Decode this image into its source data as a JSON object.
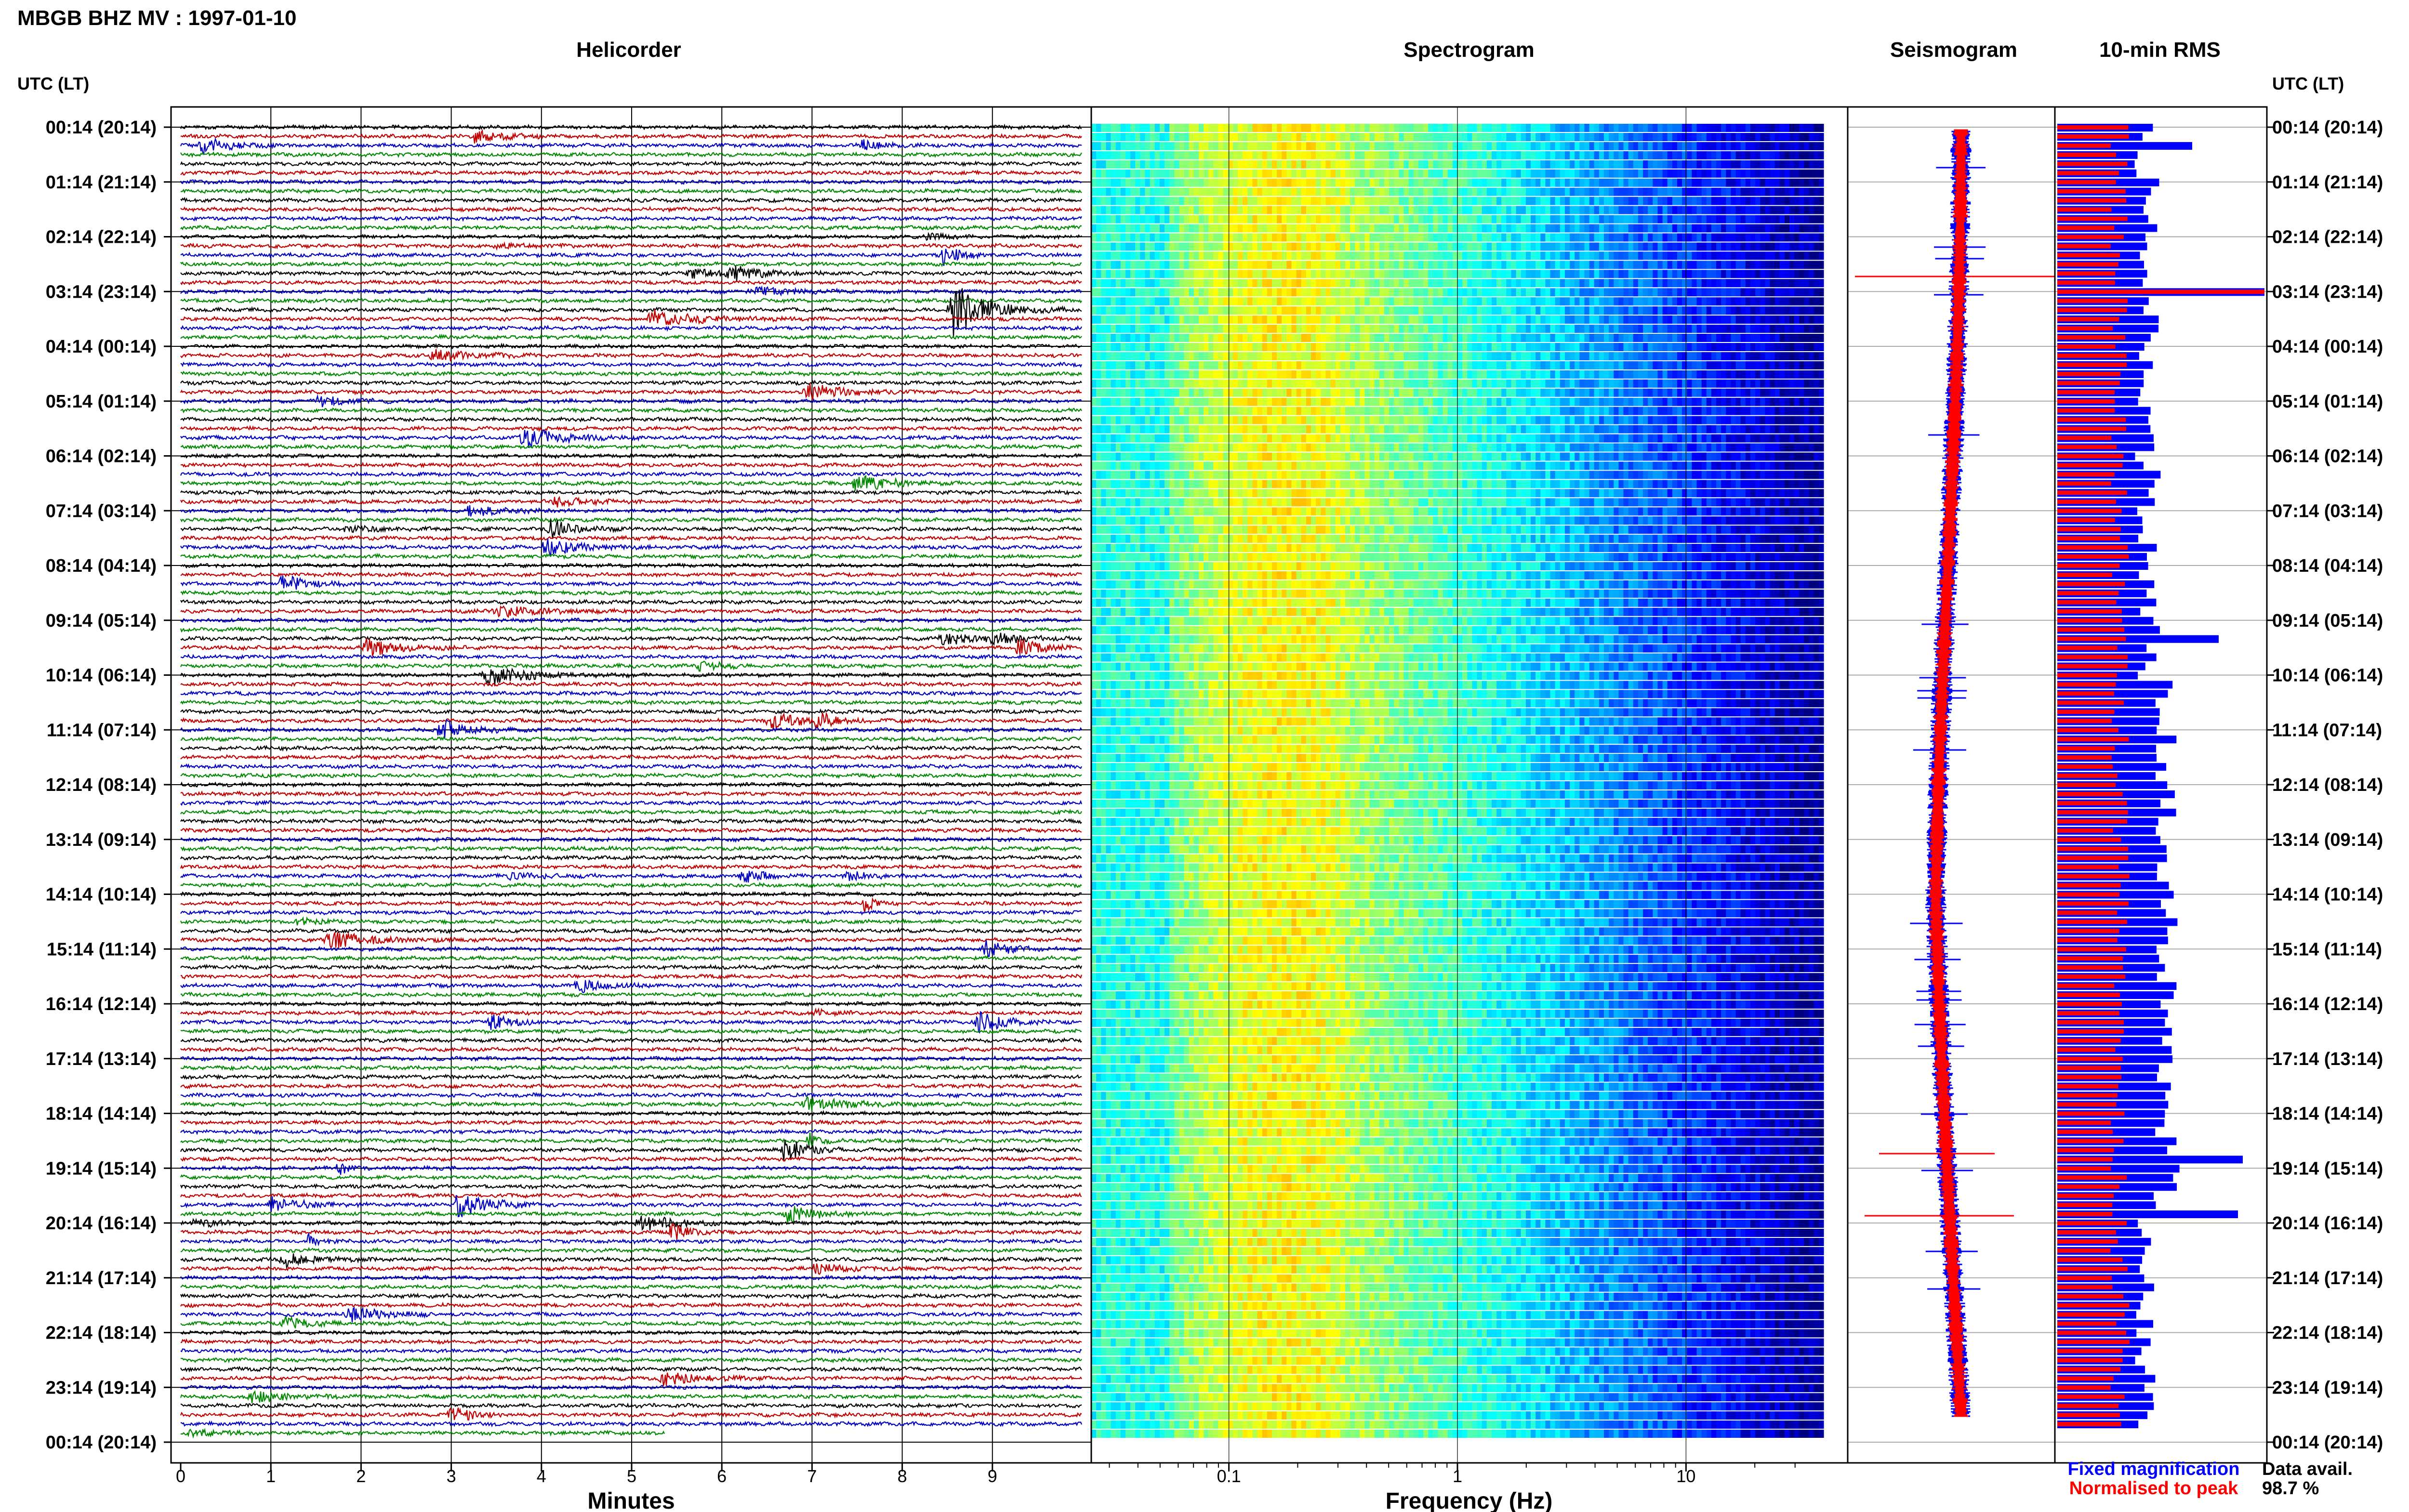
{
  "title": "MBGB BHZ MV : 1997-01-10",
  "panels": {
    "helicorder": "Helicorder",
    "spectrogram": "Spectrogram",
    "seismogram": "Seismogram",
    "rms": "10-min RMS"
  },
  "time_axis_label": "UTC (LT)",
  "hour_labels": [
    "00:14 (20:14)",
    "01:14 (21:14)",
    "02:14 (22:14)",
    "03:14 (23:14)",
    "04:14 (00:14)",
    "05:14 (01:14)",
    "06:14 (02:14)",
    "07:14 (03:14)",
    "08:14 (04:14)",
    "09:14 (05:14)",
    "10:14 (06:14)",
    "11:14 (07:14)",
    "12:14 (08:14)",
    "13:14 (09:14)",
    "14:14 (10:14)",
    "15:14 (11:14)",
    "16:14 (12:14)",
    "17:14 (13:14)",
    "18:14 (14:14)",
    "19:14 (15:14)",
    "20:14 (16:14)",
    "21:14 (17:14)",
    "22:14 (18:14)",
    "23:14 (19:14)",
    "00:14 (20:14)"
  ],
  "legend": {
    "fixed": "Fixed magnification",
    "normalised": "Normalised to peak",
    "avail_label": "Data avail.",
    "avail_value": "98.7 %"
  },
  "colors": {
    "trace_cycle": [
      "#000000",
      "#c00000",
      "#0000c0",
      "#008800"
    ],
    "fixed": "#0000ff",
    "normalised": "#ff0000"
  },
  "chart_data": [
    {
      "type": "line",
      "title": "Helicorder",
      "xlabel": "Minutes",
      "x_ticks": [
        "0",
        "1",
        "2",
        "3",
        "4",
        "5",
        "6",
        "7",
        "8",
        "9"
      ],
      "xlim": [
        0,
        10
      ],
      "rows_per_hour": 6
    },
    {
      "type": "heatmap",
      "title": "Spectrogram",
      "xlabel": "Frequency (Hz)",
      "x_scale": "log",
      "x_ticks": [
        "0.1",
        "1",
        "10"
      ],
      "xlim": [
        0.025,
        40
      ]
    },
    {
      "type": "line",
      "title": "Seismogram",
      "series": [
        {
          "name": "Fixed magnification"
        },
        {
          "name": "Normalised to peak"
        }
      ]
    },
    {
      "type": "bar",
      "title": "10-min RMS",
      "series": [
        {
          "name": "Fixed magnification"
        },
        {
          "name": "Normalised to peak"
        }
      ]
    }
  ]
}
